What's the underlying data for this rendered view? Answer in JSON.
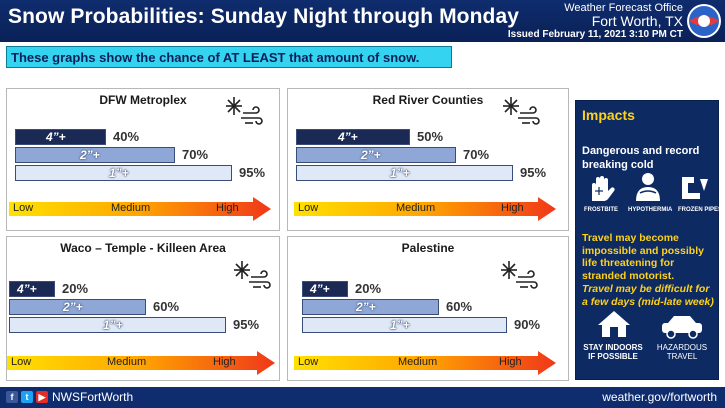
{
  "header": {
    "title": "Snow Probabilities: Sunday Night through Monday",
    "office_line1": "Weather Forecast Office",
    "office_line2": "Fort Worth, TX",
    "issued": "Issued February 11, 2021 3:10 PM CT"
  },
  "banner": "These graphs show the chance of AT LEAST that amount of snow.",
  "scale": {
    "low": "Low",
    "medium": "Medium",
    "high": "High"
  },
  "panels": [
    {
      "title": "DFW Metroplex",
      "bars": [
        {
          "label": "4”+",
          "pct": "40%",
          "value": 40
        },
        {
          "label": "2”+",
          "pct": "70%",
          "value": 70
        },
        {
          "label": "1”+",
          "pct": "95%",
          "value": 95
        }
      ]
    },
    {
      "title": "Red River Counties",
      "bars": [
        {
          "label": "4”+",
          "pct": "50%",
          "value": 50
        },
        {
          "label": "2”+",
          "pct": "70%",
          "value": 70
        },
        {
          "label": "1”+",
          "pct": "95%",
          "value": 95
        }
      ]
    },
    {
      "title": "Waco – Temple - Killeen Area",
      "bars": [
        {
          "label": "4”+",
          "pct": "20%",
          "value": 20
        },
        {
          "label": "2”+",
          "pct": "60%",
          "value": 60
        },
        {
          "label": "1”+",
          "pct": "95%",
          "value": 95
        }
      ]
    },
    {
      "title": "Palestine",
      "bars": [
        {
          "label": "4”+",
          "pct": "20%",
          "value": 20
        },
        {
          "label": "2”+",
          "pct": "60%",
          "value": 60
        },
        {
          "label": "1”+",
          "pct": "90%",
          "value": 90
        }
      ]
    }
  ],
  "impacts": {
    "title": "Impacts",
    "headline": "Dangerous and record breaking cold",
    "icons": [
      {
        "name": "frostbite-icon",
        "caption": "FROSTBITE"
      },
      {
        "name": "hypothermia-icon",
        "caption": "HYPOTHERMIA"
      },
      {
        "name": "frozen-pipes-icon",
        "caption": "FROZEN PIPES"
      }
    ],
    "travel": "Travel may become impossible and possibly life threatening for stranded motorist.",
    "travel2": "Travel may be difficult for a few days (mid-late week)",
    "stay_indoors": "STAY INDOORS IF POSSIBLE",
    "hazardous": "HAZARDOUS TRAVEL"
  },
  "footer": {
    "handle": "NWSFortWorth",
    "site": "weather.gov/fortworth"
  },
  "colors": {
    "header_bg": "#0f2c6e",
    "banner_bg": "#34d3f0",
    "bar_4in": "#1b2a55",
    "bar_2in": "#8ea7d6",
    "bar_1in": "#dfe8f7",
    "impacts_accent": "#ffd21a"
  }
}
